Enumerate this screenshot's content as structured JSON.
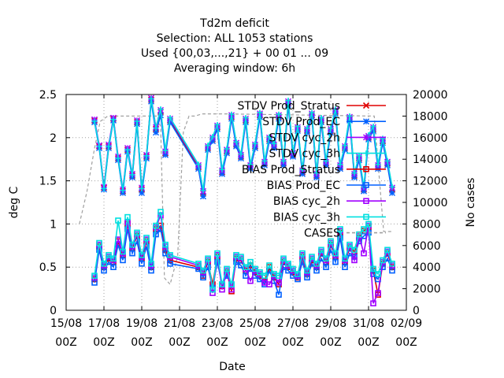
{
  "chart_data": {
    "type": "line",
    "title_lines": [
      "Td2m deficit",
      "Selection: ALL    1053 stations",
      "Used {00,03,...,21} + 00 01 ... 09",
      "Averaging window:  6h"
    ],
    "xlabel": "Date",
    "ylabel": "deg C",
    "y2label": "No cases",
    "x_ticks": [
      {
        "day": 15,
        "l1": "15/08",
        "l2": "00Z"
      },
      {
        "day": 17,
        "l1": "17/08",
        "l2": "00Z"
      },
      {
        "day": 19,
        "l1": "19/08",
        "l2": "00Z"
      },
      {
        "day": 21,
        "l1": "21/08",
        "l2": "00Z"
      },
      {
        "day": 23,
        "l1": "23/08",
        "l2": "00Z"
      },
      {
        "day": 25,
        "l1": "25/08",
        "l2": "00Z"
      },
      {
        "day": 27,
        "l1": "27/08",
        "l2": "00Z"
      },
      {
        "day": 29,
        "l1": "29/08",
        "l2": "00Z"
      },
      {
        "day": 31,
        "l1": "31/08",
        "l2": "00Z"
      },
      {
        "day": 33,
        "l1": "02/09",
        "l2": "00Z"
      }
    ],
    "xlim": [
      15,
      33
    ],
    "ylim": [
      0,
      2.5
    ],
    "y_ticks": [
      "0",
      "0.5",
      "1",
      "1.5",
      "2",
      "2.5"
    ],
    "y2lim": [
      0,
      20000
    ],
    "y2_ticks": [
      "0",
      "2000",
      "4000",
      "6000",
      "8000",
      "10000",
      "12000",
      "14000",
      "16000",
      "18000",
      "20000"
    ],
    "grid": true,
    "legend_position": "top-right",
    "x": [
      16.5,
      16.75,
      17,
      17.25,
      17.5,
      17.75,
      18,
      18.25,
      18.5,
      18.75,
      19,
      19.25,
      19.5,
      19.75,
      20,
      20.25,
      20.5,
      22,
      22.25,
      22.5,
      22.75,
      23,
      23.25,
      23.5,
      23.75,
      24,
      24.25,
      24.5,
      24.75,
      25,
      25.25,
      25.5,
      25.75,
      26,
      26.25,
      26.5,
      26.75,
      27,
      27.25,
      27.5,
      27.75,
      28,
      28.25,
      28.5,
      28.75,
      29,
      29.25,
      29.5,
      29.75,
      30,
      30.25,
      30.5,
      30.75,
      31,
      31.25,
      31.5,
      31.75,
      32,
      32.25
    ],
    "series": [
      {
        "name": "STDV Prod_Stratus",
        "color": "#e00000",
        "marker": "x",
        "values": [
          2.2,
          1.9,
          1.42,
          1.9,
          2.22,
          1.76,
          1.38,
          1.86,
          1.56,
          2.18,
          1.4,
          1.78,
          2.44,
          2.1,
          2.3,
          1.82,
          2.2,
          1.66,
          1.36,
          1.88,
          1.98,
          2.12,
          1.6,
          1.84,
          2.24,
          1.92,
          1.78,
          2.2,
          1.66,
          1.9,
          2.26,
          1.7,
          1.98,
          1.9,
          2.24,
          1.7,
          2.4,
          1.8,
          2.1,
          1.6,
          2.08,
          2.26,
          1.56,
          2.2,
          1.7,
          2.08,
          2.3,
          1.66,
          1.88,
          2.22,
          1.56,
          1.76,
          1.4,
          2.0,
          2.1,
          1.66,
          1.96,
          1.7,
          1.4
        ]
      },
      {
        "name": "STDV Prod_EC",
        "color": "#0060ff",
        "marker": "*",
        "values": [
          2.18,
          1.88,
          1.4,
          1.88,
          2.2,
          1.74,
          1.36,
          1.84,
          1.54,
          2.16,
          1.36,
          1.76,
          2.42,
          2.06,
          2.26,
          1.8,
          2.18,
          1.64,
          1.32,
          1.86,
          1.96,
          2.1,
          1.58,
          1.82,
          2.22,
          1.9,
          1.76,
          2.18,
          1.64,
          1.88,
          2.24,
          1.68,
          1.96,
          1.88,
          2.22,
          1.68,
          2.38,
          1.78,
          2.08,
          1.58,
          2.06,
          2.24,
          1.54,
          2.18,
          1.68,
          2.06,
          2.28,
          1.64,
          1.86,
          2.2,
          1.54,
          1.74,
          1.38,
          1.98,
          2.08,
          1.64,
          1.94,
          1.68,
          1.36
        ]
      },
      {
        "name": "STDV cyc_2h",
        "color": "#a000ff",
        "marker": "*",
        "values": [
          2.21,
          1.91,
          1.43,
          1.92,
          2.23,
          1.78,
          1.4,
          1.88,
          1.58,
          2.2,
          1.42,
          1.8,
          2.46,
          2.12,
          2.32,
          1.84,
          2.22,
          1.68,
          1.38,
          1.9,
          2.0,
          2.14,
          1.62,
          1.86,
          2.26,
          1.94,
          1.8,
          2.22,
          1.68,
          1.92,
          2.28,
          1.72,
          2.0,
          1.92,
          2.26,
          1.72,
          2.42,
          1.82,
          2.12,
          1.62,
          2.1,
          2.28,
          1.58,
          2.22,
          1.72,
          2.1,
          2.32,
          1.68,
          1.9,
          2.24,
          1.58,
          1.78,
          1.42,
          2.02,
          2.12,
          1.68,
          1.98,
          1.72,
          1.42
        ]
      },
      {
        "name": "STDV cyc_3h",
        "color": "#00e0e0",
        "marker": "+",
        "values": [
          2.19,
          1.9,
          1.41,
          1.9,
          2.21,
          1.76,
          1.39,
          1.86,
          1.57,
          2.19,
          1.41,
          1.79,
          2.45,
          2.11,
          2.33,
          1.85,
          2.23,
          1.69,
          1.39,
          1.91,
          2.01,
          2.15,
          1.63,
          1.87,
          2.27,
          1.95,
          1.81,
          2.23,
          1.69,
          1.93,
          2.29,
          1.73,
          2.01,
          1.93,
          2.27,
          1.73,
          2.43,
          1.83,
          2.13,
          1.63,
          2.11,
          2.29,
          1.59,
          2.23,
          1.73,
          2.11,
          2.33,
          1.69,
          1.91,
          2.25,
          1.59,
          1.79,
          1.43,
          2.03,
          2.13,
          1.69,
          1.99,
          1.73,
          1.43
        ]
      },
      {
        "name": "BIAS Prod_Stratus",
        "color": "#e00000",
        "marker": "square",
        "values": [
          0.36,
          0.74,
          0.5,
          0.6,
          0.56,
          0.8,
          0.64,
          1.0,
          0.72,
          0.86,
          0.6,
          0.8,
          0.5,
          0.94,
          0.98,
          0.7,
          0.58,
          0.5,
          0.4,
          0.56,
          0.3,
          0.62,
          0.28,
          0.44,
          0.22,
          0.6,
          0.58,
          0.46,
          0.52,
          0.44,
          0.4,
          0.34,
          0.5,
          0.38,
          0.3,
          0.56,
          0.5,
          0.44,
          0.38,
          0.62,
          0.42,
          0.58,
          0.5,
          0.66,
          0.56,
          0.76,
          0.62,
          0.9,
          0.56,
          0.72,
          0.68,
          0.84,
          0.92,
          0.96,
          0.46,
          0.18,
          0.54,
          0.66,
          0.5
        ]
      },
      {
        "name": "BIAS Prod_EC",
        "color": "#0060ff",
        "marker": "square",
        "values": [
          0.32,
          0.7,
          0.46,
          0.56,
          0.5,
          0.76,
          0.58,
          0.94,
          0.66,
          0.8,
          0.54,
          0.74,
          0.46,
          0.88,
          0.94,
          0.66,
          0.54,
          0.48,
          0.38,
          0.5,
          0.26,
          0.56,
          0.3,
          0.4,
          0.3,
          0.56,
          0.52,
          0.4,
          0.48,
          0.4,
          0.36,
          0.3,
          0.46,
          0.34,
          0.18,
          0.5,
          0.46,
          0.4,
          0.36,
          0.56,
          0.38,
          0.54,
          0.46,
          0.6,
          0.5,
          0.7,
          0.56,
          0.84,
          0.5,
          0.66,
          0.62,
          0.8,
          0.86,
          0.9,
          0.42,
          0.36,
          0.5,
          0.6,
          0.46
        ]
      },
      {
        "name": "BIAS cyc_2h",
        "color": "#a000ff",
        "marker": "square",
        "values": [
          0.38,
          0.76,
          0.52,
          0.62,
          0.58,
          0.82,
          0.66,
          1.02,
          0.74,
          0.88,
          0.62,
          0.82,
          0.52,
          0.96,
          1.1,
          0.74,
          0.62,
          0.52,
          0.44,
          0.58,
          0.2,
          0.64,
          0.24,
          0.46,
          0.24,
          0.62,
          0.6,
          0.48,
          0.34,
          0.46,
          0.42,
          0.32,
          0.3,
          0.4,
          0.32,
          0.58,
          0.52,
          0.46,
          0.4,
          0.64,
          0.44,
          0.6,
          0.52,
          0.68,
          0.58,
          0.78,
          0.64,
          0.92,
          0.58,
          0.74,
          0.58,
          0.86,
          0.66,
          0.98,
          0.08,
          0.2,
          0.56,
          0.68,
          0.52
        ]
      },
      {
        "name": "BIAS cyc_3h",
        "color": "#00e0e0",
        "marker": "square",
        "values": [
          0.4,
          0.78,
          0.54,
          0.64,
          0.6,
          1.04,
          0.68,
          1.08,
          0.76,
          0.9,
          0.64,
          0.84,
          0.54,
          0.98,
          1.14,
          0.76,
          0.64,
          0.54,
          0.46,
          0.6,
          0.24,
          0.66,
          0.3,
          0.48,
          0.3,
          0.64,
          0.62,
          0.5,
          0.56,
          0.48,
          0.44,
          0.4,
          0.52,
          0.42,
          0.4,
          0.6,
          0.54,
          0.48,
          0.42,
          0.66,
          0.46,
          0.62,
          0.54,
          0.7,
          0.6,
          0.8,
          0.66,
          0.94,
          0.6,
          0.76,
          0.7,
          0.88,
          0.94,
          1.0,
          0.48,
          0.42,
          0.58,
          0.7,
          0.54
        ]
      }
    ],
    "cases": {
      "name": "CASES",
      "color": "#a0a0a0",
      "dash": "dashed",
      "x": [
        15.7,
        15.9,
        16.1,
        16.3,
        16.5,
        16.8,
        17.2,
        19.8,
        20.0,
        20.2,
        20.5,
        20.9,
        21.2,
        21.5,
        21.8,
        22.2,
        22.7,
        23.5,
        31.3,
        31.8,
        32.3
      ],
      "values": [
        8000,
        9500,
        11000,
        13000,
        15000,
        17500,
        18000,
        18000,
        17000,
        3000,
        2400,
        5000,
        16500,
        18000,
        18000,
        18200,
        18200,
        18200,
        18000,
        7300,
        7300
      ]
    }
  }
}
